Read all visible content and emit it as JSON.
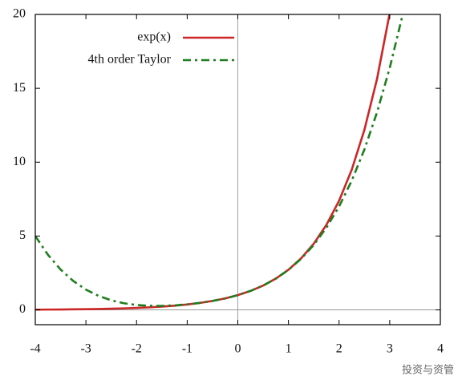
{
  "chart_data": {
    "type": "line",
    "x": [
      -4,
      -3.75,
      -3.5,
      -3.25,
      -3,
      -2.75,
      -2.5,
      -2.25,
      -2,
      -1.75,
      -1.5,
      -1.25,
      -1,
      -0.75,
      -0.5,
      -0.25,
      0,
      0.25,
      0.5,
      0.75,
      1,
      1.25,
      1.5,
      1.75,
      2,
      2.25,
      2.5,
      2.75,
      3,
      3.25
    ],
    "series": [
      {
        "name": "exp(x)",
        "color": "#cc2626",
        "dash": "solid",
        "values": [
          0.018,
          0.024,
          0.03,
          0.039,
          0.05,
          0.064,
          0.082,
          0.105,
          0.135,
          0.174,
          0.223,
          0.287,
          0.368,
          0.472,
          0.607,
          0.779,
          1,
          1.284,
          1.649,
          2.117,
          2.718,
          3.49,
          4.482,
          5.755,
          7.389,
          9.488,
          12.182,
          15.643,
          20.086,
          null
        ]
      },
      {
        "name": "4th order Taylor",
        "color": "#1e7d1e",
        "dash": "dashdot",
        "values": [
          5,
          3.732,
          2.732,
          1.958,
          1.375,
          0.948,
          0.648,
          0.451,
          0.333,
          0.279,
          0.273,
          0.307,
          0.375,
          0.474,
          0.607,
          0.779,
          1,
          1.284,
          1.648,
          2.115,
          2.708,
          3.458,
          4.398,
          5.565,
          7,
          8.748,
          10.857,
          13.38,
          16.375,
          19.902
        ]
      }
    ],
    "xlim": [
      -4,
      4
    ],
    "xticks": [
      -4,
      -3,
      -2,
      -1,
      0,
      1,
      2,
      3,
      4
    ],
    "ylim": [
      -1,
      20
    ],
    "yticks": [
      0,
      5,
      10,
      15,
      20
    ],
    "zero_axes": true,
    "legend": "upper-center",
    "watermark": "投资与资管"
  }
}
